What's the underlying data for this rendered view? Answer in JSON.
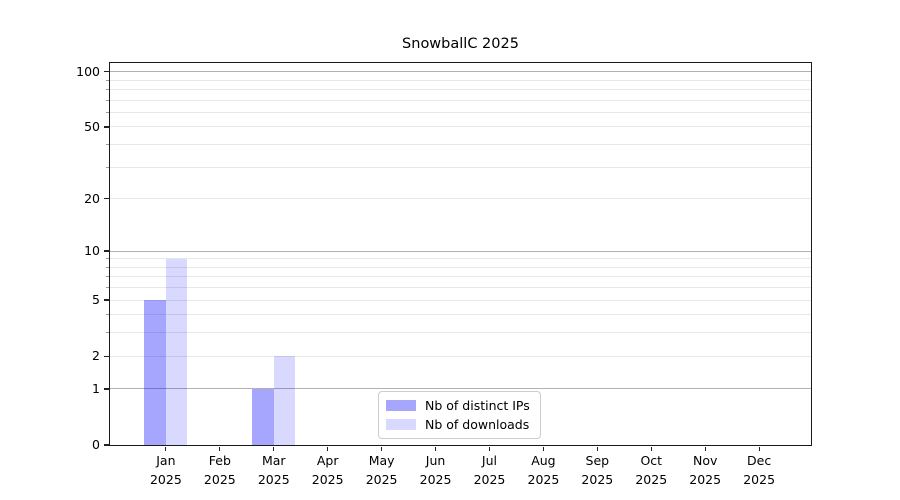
{
  "chart_data": {
    "type": "bar",
    "title": "SnowballC 2025",
    "x": {
      "categories": [
        "Jan",
        "Feb",
        "Mar",
        "Apr",
        "May",
        "Jun",
        "Jul",
        "Aug",
        "Sep",
        "Oct",
        "Nov",
        "Dec"
      ],
      "sublabel": "2025"
    },
    "series": [
      {
        "name": "Nb of distinct IPs",
        "color": "rgba(0,0,255,0.35)",
        "values": [
          5,
          0,
          1,
          0,
          0,
          0,
          0,
          0,
          0,
          0,
          0,
          0
        ]
      },
      {
        "name": "Nb of downloads",
        "color": "rgba(0,0,255,0.15)",
        "values": [
          9,
          0,
          2,
          0,
          0,
          0,
          0,
          0,
          0,
          0,
          0,
          0
        ]
      }
    ],
    "y_axis": {
      "scale": "log1p",
      "tick_labels": [
        0,
        1,
        2,
        5,
        10,
        20,
        50,
        100
      ],
      "major_gridlines": [
        1,
        10,
        100
      ],
      "minor_gridlines": [
        2,
        3,
        4,
        5,
        6,
        7,
        8,
        9,
        20,
        30,
        40,
        50,
        60,
        70,
        80,
        90
      ],
      "range": [
        0,
        110
      ]
    },
    "legend": {
      "position": "lower center"
    },
    "colors": {
      "major_grid": "#b2b2b2",
      "minor_grid": "#e8e8e8",
      "axis": "#1a1a1a"
    },
    "grid": true
  }
}
